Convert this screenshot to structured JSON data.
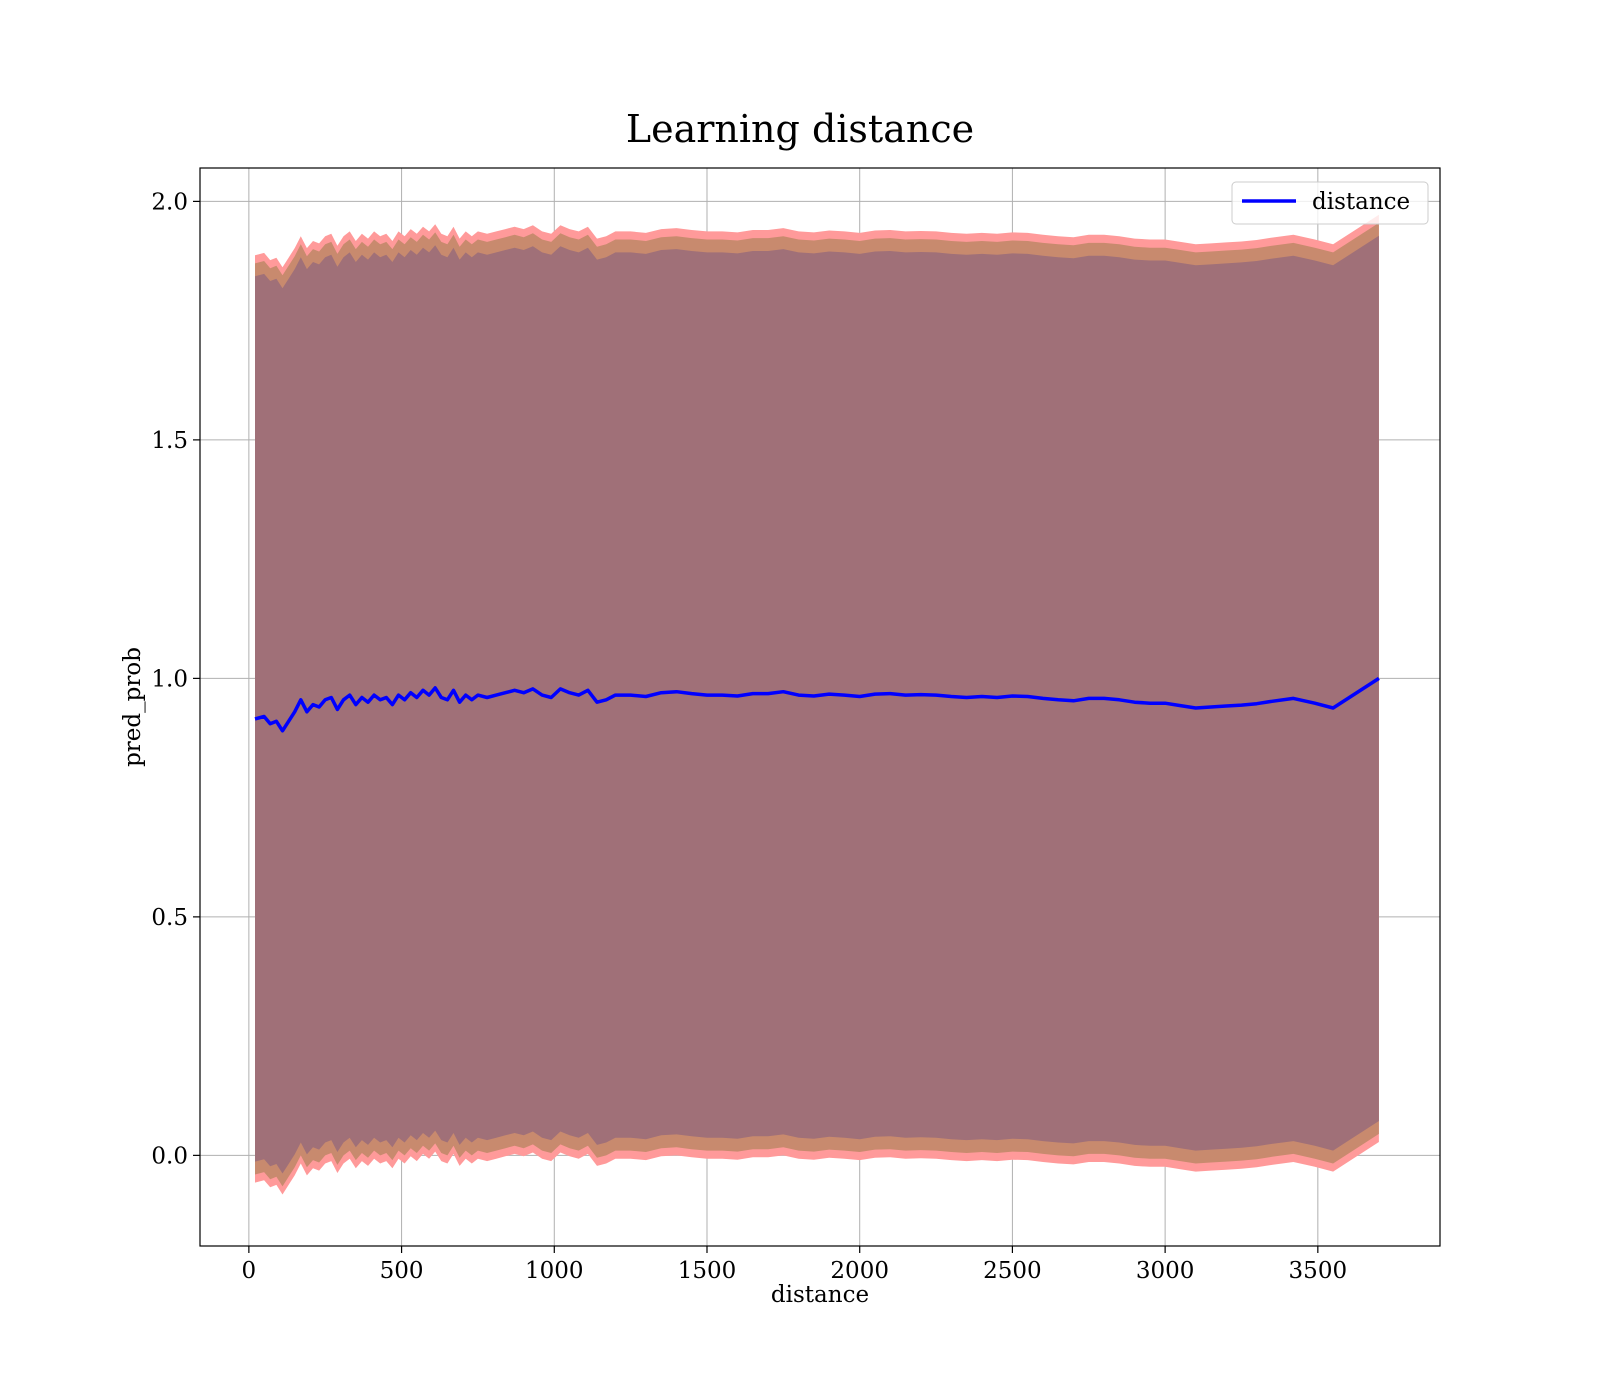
{
  "chart_data": {
    "type": "line",
    "title": "Learning distance",
    "xlabel": "distance",
    "ylabel": "pred_prob",
    "xlim": [
      -160,
      3900
    ],
    "ylim": [
      -0.19,
      2.07
    ],
    "xticks": [
      0,
      500,
      1000,
      1500,
      2000,
      2500,
      3000,
      3500
    ],
    "yticks": [
      0.0,
      0.5,
      1.0,
      1.5,
      2.0
    ],
    "xtick_labels": [
      "0",
      "500",
      "1000",
      "1500",
      "2000",
      "2500",
      "3000",
      "3500"
    ],
    "ytick_labels": [
      "0.0",
      "0.5",
      "1.0",
      "1.5",
      "2.0"
    ],
    "grid": true,
    "legend": {
      "position": "top-right",
      "entries": [
        "distance"
      ]
    },
    "colors": {
      "line": "#0000ff",
      "outer_band": "#ff9a9a",
      "middle_band": "#c88a6e",
      "inner_band": "#a07078",
      "grid": "#b0b0b0"
    },
    "series": [
      {
        "name": "distance",
        "x": [
          20,
          50,
          70,
          90,
          110,
          130,
          150,
          170,
          190,
          210,
          230,
          250,
          270,
          290,
          310,
          330,
          350,
          370,
          390,
          410,
          430,
          450,
          470,
          490,
          510,
          530,
          550,
          570,
          590,
          610,
          630,
          650,
          670,
          690,
          710,
          730,
          750,
          780,
          810,
          840,
          870,
          900,
          930,
          960,
          990,
          1020,
          1050,
          1080,
          1110,
          1140,
          1170,
          1200,
          1250,
          1300,
          1350,
          1400,
          1450,
          1500,
          1550,
          1600,
          1650,
          1700,
          1750,
          1800,
          1850,
          1900,
          1950,
          2000,
          2050,
          2100,
          2150,
          2200,
          2250,
          2300,
          2350,
          2400,
          2450,
          2500,
          2550,
          2600,
          2650,
          2700,
          2750,
          2800,
          2850,
          2900,
          2950,
          3000,
          3050,
          3100,
          3150,
          3200,
          3250,
          3300,
          3350,
          3420,
          3490,
          3550,
          3700
        ],
        "y": [
          0.915,
          0.92,
          0.905,
          0.91,
          0.89,
          0.91,
          0.93,
          0.955,
          0.93,
          0.945,
          0.94,
          0.955,
          0.96,
          0.935,
          0.955,
          0.965,
          0.945,
          0.96,
          0.95,
          0.965,
          0.955,
          0.96,
          0.945,
          0.965,
          0.955,
          0.97,
          0.96,
          0.975,
          0.965,
          0.98,
          0.96,
          0.955,
          0.975,
          0.95,
          0.965,
          0.955,
          0.965,
          0.96,
          0.965,
          0.97,
          0.975,
          0.97,
          0.978,
          0.965,
          0.96,
          0.978,
          0.97,
          0.965,
          0.975,
          0.95,
          0.955,
          0.965,
          0.965,
          0.962,
          0.97,
          0.972,
          0.968,
          0.965,
          0.965,
          0.963,
          0.968,
          0.968,
          0.972,
          0.965,
          0.963,
          0.967,
          0.965,
          0.962,
          0.967,
          0.968,
          0.965,
          0.966,
          0.965,
          0.962,
          0.96,
          0.962,
          0.96,
          0.963,
          0.962,
          0.958,
          0.955,
          0.953,
          0.958,
          0.958,
          0.955,
          0.95,
          0.948,
          0.948,
          0.943,
          0.938,
          0.94,
          0.942,
          0.944,
          0.947,
          0.952,
          0.958,
          0.948,
          0.938,
          1.0
        ]
      }
    ],
    "bands": [
      {
        "role": "outer",
        "half_width": 0.972
      },
      {
        "role": "middle",
        "half_width": 0.955
      },
      {
        "role": "inner",
        "half_width": 0.928
      }
    ]
  }
}
